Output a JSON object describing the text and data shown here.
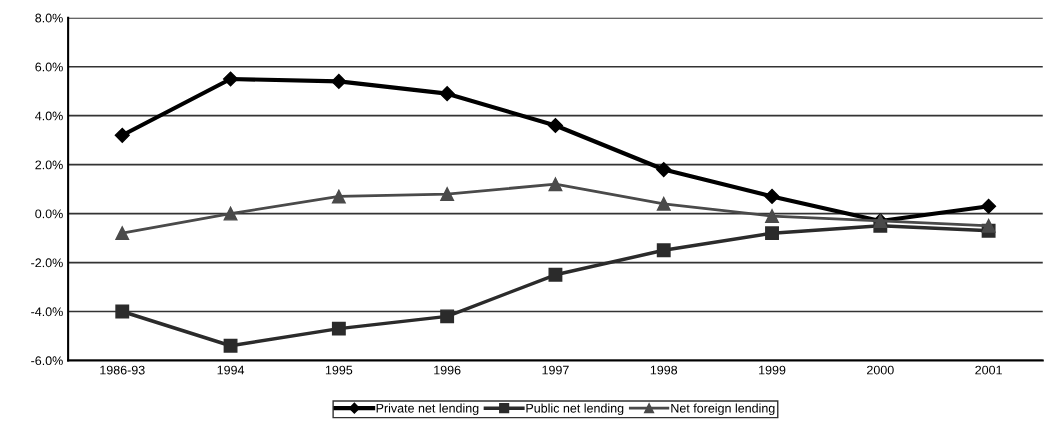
{
  "chart_data": {
    "type": "line",
    "categories": [
      "1986-93",
      "1994",
      "1995",
      "1996",
      "1997",
      "1998",
      "1999",
      "2000",
      "2001"
    ],
    "series": [
      {
        "name": "Private net lending",
        "color": "#000000",
        "marker": "diamond",
        "values": [
          3.2,
          5.5,
          5.4,
          4.9,
          3.6,
          1.8,
          0.7,
          -0.3,
          0.3
        ]
      },
      {
        "name": "Public net lending",
        "color": "#2b2b2b",
        "marker": "square",
        "values": [
          -4.0,
          -5.4,
          -4.7,
          -4.2,
          -2.5,
          -1.5,
          -0.8,
          -0.5,
          -0.7
        ]
      },
      {
        "name": "Net foreign lending",
        "color": "#4a4a4a",
        "marker": "triangle",
        "values": [
          -0.8,
          0.0,
          0.7,
          0.8,
          1.2,
          0.4,
          -0.1,
          -0.3,
          -0.5
        ]
      }
    ],
    "ylim": [
      -6,
      8
    ],
    "yticks": [
      {
        "value": -6,
        "label": "-6.0%"
      },
      {
        "value": -4,
        "label": "-4.0%"
      },
      {
        "value": -2,
        "label": "-2.0%"
      },
      {
        "value": 0,
        "label": "0.0%"
      },
      {
        "value": 2,
        "label": "2.0%"
      },
      {
        "value": 4,
        "label": "4.0%"
      },
      {
        "value": 6,
        "label": "6.0%"
      },
      {
        "value": 8,
        "label": "8.0%"
      }
    ],
    "grid": "y",
    "legend": "bottom",
    "line_style": "solid"
  }
}
